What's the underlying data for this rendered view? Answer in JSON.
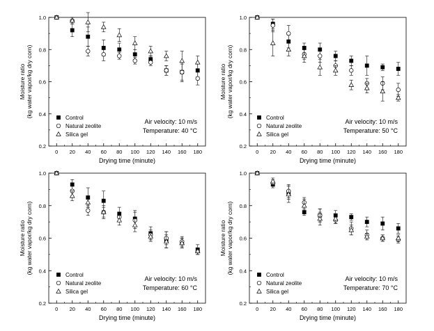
{
  "figure": {
    "name": "moisture-ratio-drying-curves"
  },
  "chart_data": [
    {
      "type": "scatter",
      "panel": "top-left",
      "xlabel": "Drying time (minute)",
      "ylabel_line1": "Moisture ratio",
      "ylabel_line2": "(kg water vapor/kg dry corn)",
      "xlim": [
        0,
        180
      ],
      "ylim": [
        0.2,
        1.0
      ],
      "xticks": [
        0,
        20,
        40,
        60,
        80,
        100,
        120,
        140,
        160,
        180
      ],
      "yticks": [
        0.2,
        0.4,
        0.6,
        0.8,
        1.0
      ],
      "annotation_line1": "Air velocity: 10 m/s",
      "annotation_line2": "Temperature: 40 °C",
      "legend": [
        "Control",
        "Natural zeolite",
        "Silica gel"
      ],
      "x": [
        0,
        20,
        40,
        60,
        80,
        100,
        120,
        140,
        160,
        180
      ],
      "series": [
        {
          "name": "Control",
          "marker": "filled-square",
          "values": [
            1.0,
            0.92,
            0.88,
            0.81,
            0.8,
            0.77,
            0.74,
            0.67,
            0.66,
            0.67
          ],
          "errors": [
            0,
            0.04,
            0.06,
            0.05,
            0.04,
            0.03,
            0.02,
            0.03,
            0.06,
            0.04
          ]
        },
        {
          "name": "Natural zeolite",
          "marker": "open-circle",
          "values": [
            1.0,
            0.98,
            0.79,
            0.77,
            0.76,
            0.73,
            0.72,
            0.67,
            0.66,
            0.62
          ],
          "errors": [
            0,
            0.02,
            0.03,
            0.04,
            0.02,
            0.02,
            0.02,
            0.03,
            0.05,
            0.04
          ]
        },
        {
          "name": "Silica gel",
          "marker": "open-triangle",
          "values": [
            1.0,
            0.98,
            0.97,
            0.94,
            0.89,
            0.84,
            0.79,
            0.76,
            0.73,
            0.72
          ],
          "errors": [
            0,
            0.02,
            0.06,
            0.03,
            0.04,
            0.04,
            0.03,
            0.03,
            0.06,
            0.04
          ]
        }
      ]
    },
    {
      "type": "scatter",
      "panel": "top-right",
      "xlabel": "Drying time (minute)",
      "ylabel_line1": "Moisture ratio",
      "ylabel_line2": "(kg water vapor/kg dry corn)",
      "xlim": [
        0,
        180
      ],
      "ylim": [
        0.2,
        1.0
      ],
      "xticks": [
        0,
        20,
        40,
        60,
        80,
        100,
        120,
        140,
        160,
        180
      ],
      "yticks": [
        0.2,
        0.4,
        0.6,
        0.8,
        1.0
      ],
      "annotation_line1": "Air velocity: 10 m/s",
      "annotation_line2": "Temperature: 50 °C",
      "legend": [
        "Control",
        "Natural zeolite",
        "Silica gel"
      ],
      "x": [
        0,
        20,
        40,
        60,
        80,
        100,
        120,
        140,
        160,
        180
      ],
      "series": [
        {
          "name": "Control",
          "marker": "filled-square",
          "values": [
            1.0,
            0.96,
            0.85,
            0.81,
            0.8,
            0.76,
            0.73,
            0.7,
            0.69,
            0.68
          ],
          "errors": [
            0,
            0.03,
            0.04,
            0.03,
            0.04,
            0.03,
            0.03,
            0.06,
            0.02,
            0.04
          ]
        },
        {
          "name": "Natural zeolite",
          "marker": "open-circle",
          "values": [
            1.0,
            0.95,
            0.9,
            0.77,
            0.76,
            0.7,
            0.67,
            0.59,
            0.59,
            0.55
          ],
          "errors": [
            0,
            0.04,
            0.05,
            0.03,
            0.04,
            0.03,
            0.03,
            0.03,
            0.04,
            0.04
          ]
        },
        {
          "name": "Silica gel",
          "marker": "open-triangle",
          "values": [
            1.0,
            0.84,
            0.8,
            0.76,
            0.69,
            0.67,
            0.58,
            0.56,
            0.54,
            0.5
          ],
          "errors": [
            0,
            0.08,
            0.04,
            0.04,
            0.05,
            0.03,
            0.03,
            0.03,
            0.06,
            0.02
          ]
        }
      ]
    },
    {
      "type": "scatter",
      "panel": "bottom-left",
      "xlabel": "Drying time (minute)",
      "ylabel_line1": "Moisture ratio",
      "ylabel_line2": "(kg water vapor/kg dry corn)",
      "xlim": [
        0,
        180
      ],
      "ylim": [
        0.2,
        1.0
      ],
      "xticks": [
        0,
        20,
        40,
        60,
        80,
        100,
        120,
        140,
        160,
        180
      ],
      "yticks": [
        0.2,
        0.4,
        0.6,
        0.8,
        1.0
      ],
      "annotation_line1": "Air velocity: 10 m/s",
      "annotation_line2": "Temperature: 60 °C",
      "legend": [
        "Control",
        "Natural zeolite",
        "Silica gel"
      ],
      "x": [
        0,
        20,
        40,
        60,
        80,
        100,
        120,
        140,
        160,
        180
      ],
      "series": [
        {
          "name": "Control",
          "marker": "filled-square",
          "values": [
            1.0,
            0.93,
            0.85,
            0.83,
            0.75,
            0.72,
            0.63,
            0.59,
            0.57,
            0.53
          ],
          "errors": [
            0,
            0.03,
            0.06,
            0.06,
            0.04,
            0.05,
            0.04,
            0.05,
            0.03,
            0.03
          ]
        },
        {
          "name": "Natural zeolite",
          "marker": "open-circle",
          "values": [
            1.0,
            0.89,
            0.77,
            0.76,
            0.73,
            0.71,
            0.62,
            0.6,
            0.58,
            0.52
          ],
          "errors": [
            0,
            0.03,
            0.03,
            0.04,
            0.03,
            0.05,
            0.03,
            0.04,
            0.03,
            0.02
          ]
        },
        {
          "name": "Silica gel",
          "marker": "open-triangle",
          "values": [
            1.0,
            0.86,
            0.82,
            0.76,
            0.71,
            0.68,
            0.61,
            0.58,
            0.57,
            0.52
          ],
          "errors": [
            0,
            0.03,
            0.03,
            0.03,
            0.03,
            0.04,
            0.03,
            0.04,
            0.03,
            0.02
          ]
        }
      ]
    },
    {
      "type": "scatter",
      "panel": "bottom-right",
      "xlabel": "Drying time (minute)",
      "ylabel_line1": "Moisture ratio",
      "ylabel_line2": "(kg water vapor/kg dry corn)",
      "xlim": [
        0,
        180
      ],
      "ylim": [
        0.2,
        1.0
      ],
      "xticks": [
        0,
        20,
        40,
        60,
        80,
        100,
        120,
        140,
        160,
        180
      ],
      "yticks": [
        0.2,
        0.4,
        0.6,
        0.8,
        1.0
      ],
      "annotation_line1": "Air velocity: 10 m/s",
      "annotation_line2": "Temperature: 70 °C",
      "legend": [
        "Control",
        "Natural zeolite",
        "Silica gel"
      ],
      "x": [
        0,
        20,
        40,
        60,
        80,
        100,
        120,
        140,
        160,
        180
      ],
      "series": [
        {
          "name": "Control",
          "marker": "filled-square",
          "values": [
            1.0,
            0.93,
            0.88,
            0.76,
            0.74,
            0.74,
            0.73,
            0.7,
            0.69,
            0.66
          ],
          "errors": [
            0,
            0.02,
            0.04,
            0.02,
            0.04,
            0.03,
            0.02,
            0.03,
            0.04,
            0.03
          ]
        },
        {
          "name": "Natural zeolite",
          "marker": "open-circle",
          "values": [
            1.0,
            0.94,
            0.89,
            0.82,
            0.74,
            0.71,
            0.66,
            0.62,
            0.6,
            0.59
          ],
          "errors": [
            0,
            0.02,
            0.04,
            0.03,
            0.04,
            0.02,
            0.04,
            0.03,
            0.02,
            0.02
          ]
        },
        {
          "name": "Silica gel",
          "marker": "open-triangle",
          "values": [
            1.0,
            0.95,
            0.87,
            0.8,
            0.72,
            0.72,
            0.65,
            0.61,
            0.6,
            0.6
          ],
          "errors": [
            0,
            0.02,
            0.05,
            0.04,
            0.04,
            0.03,
            0.03,
            0.02,
            0.02,
            0.02
          ]
        }
      ]
    }
  ]
}
